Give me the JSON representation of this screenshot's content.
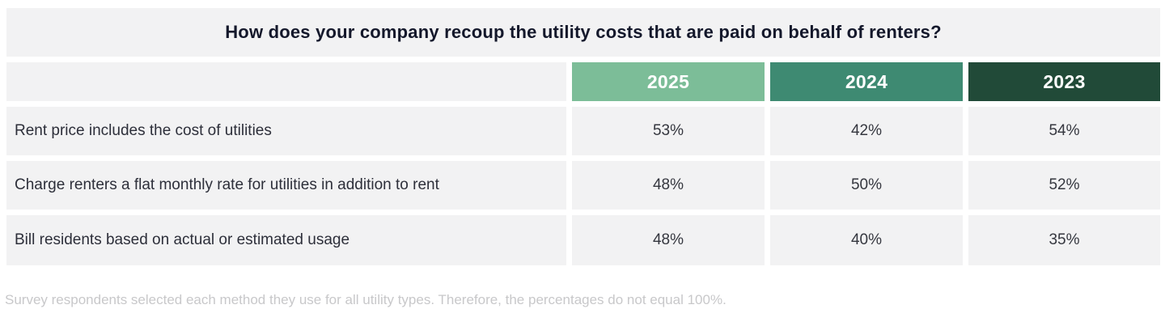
{
  "colors": {
    "header_2025": "#7cbd98",
    "header_2024": "#3e8a72",
    "header_2023": "#214a38",
    "cell_background": "#f2f2f3",
    "title_text": "#14182b",
    "body_text": "#2d2f3a",
    "footnote_text": "#c8c8ca"
  },
  "chart_data": {
    "type": "table",
    "title": "How does your company recoup the utility costs that are paid on behalf of renters?",
    "columns": [
      "2025",
      "2024",
      "2023"
    ],
    "rows": [
      {
        "label": "Rent price includes the cost of utilities",
        "values": [
          "53%",
          "42%",
          "54%"
        ]
      },
      {
        "label": "Charge renters a flat monthly rate for utilities in addition to rent",
        "values": [
          "48%",
          "50%",
          "52%"
        ]
      },
      {
        "label": "Bill residents based on actual or estimated usage",
        "values": [
          "48%",
          "40%",
          "35%"
        ]
      }
    ],
    "footnote": "Survey respondents selected each method they use for all utility types. Therefore, the percentages do not equal 100%.",
    "legend_position": "top",
    "grid": false
  }
}
